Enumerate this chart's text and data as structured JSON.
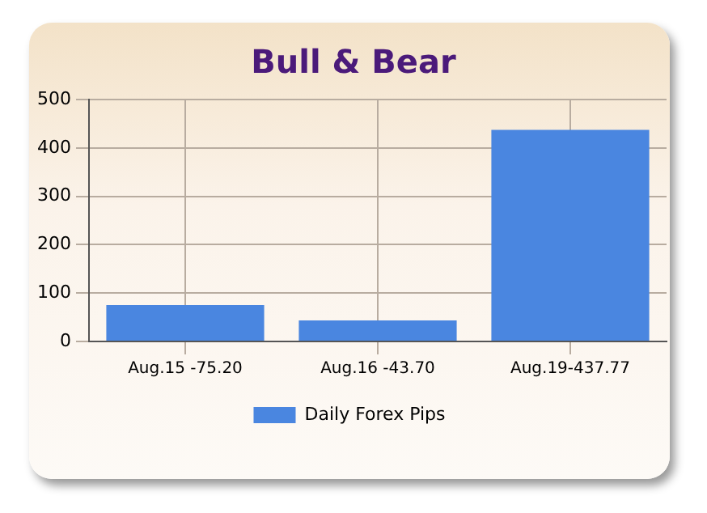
{
  "chart_data": {
    "type": "bar",
    "title": "Bull & Bear",
    "categories": [
      "Aug.15 -75.20",
      "Aug.16 -43.70",
      "Aug.19-437.77"
    ],
    "series": [
      {
        "name": "Daily Forex Pips",
        "color": "#4a86e0",
        "values": [
          75.2,
          43.7,
          437.77
        ]
      }
    ],
    "ylim": [
      0,
      500
    ],
    "yticks": [
      0,
      100,
      200,
      300,
      400,
      500
    ],
    "grid": true,
    "legend": "bottom"
  }
}
